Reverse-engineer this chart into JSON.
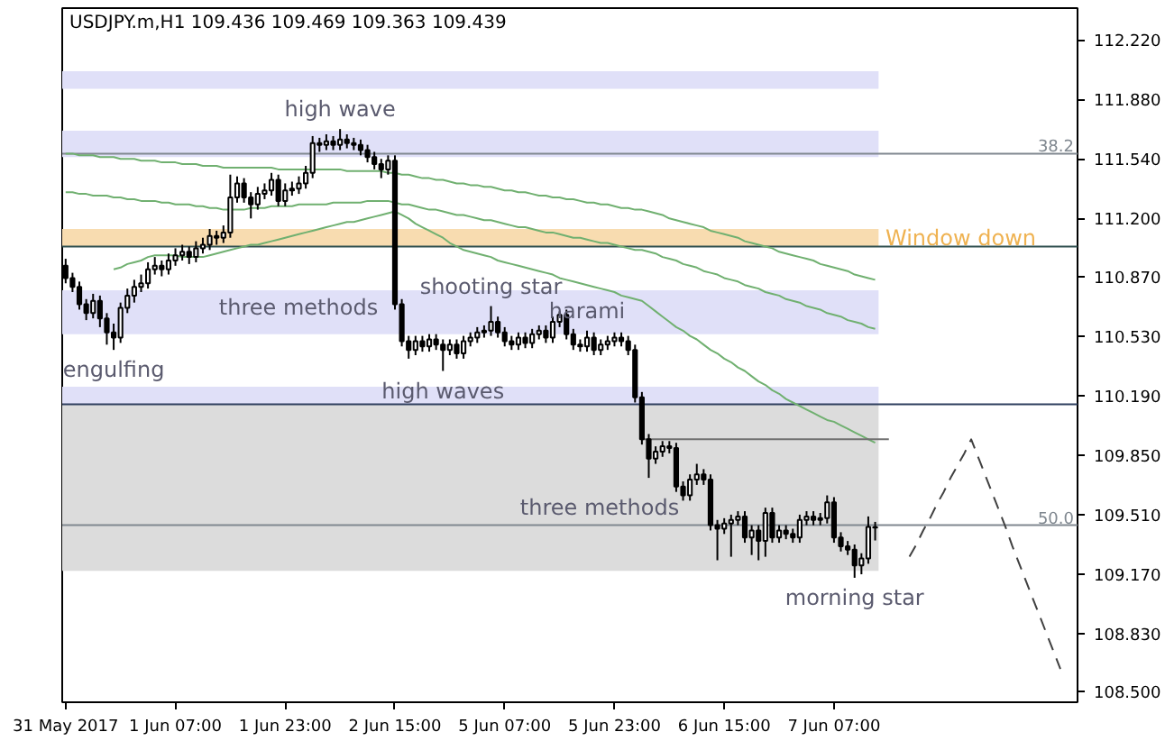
{
  "chart_data": {
    "type": "candlestick",
    "title": "USDJPY.m,H1  109.436 109.469 109.363 109.439",
    "categories": [
      "31 May 2017",
      null,
      null,
      null,
      null,
      null,
      null,
      null,
      null,
      null,
      null,
      null,
      null,
      null,
      null,
      null,
      "1 Jun 07:00",
      null,
      null,
      null,
      null,
      null,
      null,
      null,
      null,
      null,
      null,
      null,
      null,
      null,
      null,
      null,
      "1 Jun 23:00",
      null,
      null,
      null,
      null,
      null,
      null,
      null,
      null,
      null,
      null,
      null,
      null,
      null,
      null,
      null,
      "2 Jun 15:00",
      null,
      null,
      null,
      null,
      null,
      null,
      null,
      null,
      null,
      null,
      null,
      null,
      null,
      null,
      null,
      "5 Jun 07:00",
      null,
      null,
      null,
      null,
      null,
      null,
      null,
      null,
      null,
      null,
      null,
      null,
      null,
      null,
      null,
      "5 Jun 23:00",
      null,
      null,
      null,
      null,
      null,
      null,
      null,
      null,
      null,
      null,
      null,
      null,
      null,
      null,
      null,
      "6 Jun 15:00",
      null,
      null,
      null,
      null,
      null,
      null,
      null,
      null,
      null,
      null,
      null,
      null,
      null,
      null,
      null,
      "7 Jun 07:00",
      null,
      null,
      null,
      null,
      null,
      null,
      null,
      null,
      null,
      null,
      null,
      null,
      null,
      null,
      null,
      null,
      null,
      null,
      null,
      null,
      null,
      null,
      null,
      null,
      null,
      null,
      null,
      null,
      null,
      null,
      null,
      null,
      null,
      null,
      null
    ],
    "ohlc": [
      [
        110.93,
        110.97,
        110.83,
        110.86
      ],
      [
        110.86,
        110.89,
        110.78,
        110.81
      ],
      [
        110.81,
        110.84,
        110.68,
        110.71
      ],
      [
        110.71,
        110.74,
        110.62,
        110.66
      ],
      [
        110.66,
        110.77,
        110.63,
        110.73
      ],
      [
        110.73,
        110.76,
        110.58,
        110.63
      ],
      [
        110.63,
        110.66,
        110.48,
        110.55
      ],
      [
        110.55,
        110.6,
        110.45,
        110.52
      ],
      [
        110.52,
        110.72,
        110.49,
        110.69
      ],
      [
        110.69,
        110.8,
        110.66,
        110.76
      ],
      [
        110.76,
        110.85,
        110.72,
        110.81
      ],
      [
        110.81,
        110.88,
        110.78,
        110.83
      ],
      [
        110.83,
        110.95,
        110.8,
        110.91
      ],
      [
        110.91,
        110.98,
        110.88,
        110.93
      ],
      [
        110.93,
        110.96,
        110.87,
        110.91
      ],
      [
        110.91,
        111.0,
        110.88,
        110.96
      ],
      [
        110.96,
        111.03,
        110.93,
        110.99
      ],
      [
        110.99,
        111.05,
        110.96,
        111.01
      ],
      [
        111.01,
        111.04,
        110.94,
        110.98
      ],
      [
        110.98,
        111.07,
        110.95,
        111.03
      ],
      [
        111.03,
        111.09,
        111.0,
        111.05
      ],
      [
        111.05,
        111.14,
        111.02,
        111.1
      ],
      [
        111.1,
        111.13,
        111.05,
        111.09
      ],
      [
        111.09,
        111.16,
        111.06,
        111.12
      ],
      [
        111.12,
        111.45,
        111.09,
        111.32
      ],
      [
        111.32,
        111.44,
        111.29,
        111.4
      ],
      [
        111.4,
        111.43,
        111.29,
        111.32
      ],
      [
        111.32,
        111.35,
        111.2,
        111.28
      ],
      [
        111.28,
        111.38,
        111.25,
        111.34
      ],
      [
        111.34,
        111.4,
        111.31,
        111.36
      ],
      [
        111.36,
        111.46,
        111.33,
        111.42
      ],
      [
        111.42,
        111.45,
        111.27,
        111.3
      ],
      [
        111.3,
        111.4,
        111.27,
        111.36
      ],
      [
        111.36,
        111.41,
        111.33,
        111.37
      ],
      [
        111.37,
        111.44,
        111.34,
        111.4
      ],
      [
        111.4,
        111.5,
        111.37,
        111.46
      ],
      [
        111.46,
        111.67,
        111.43,
        111.63
      ],
      [
        111.63,
        111.66,
        111.58,
        111.62
      ],
      [
        111.62,
        111.68,
        111.59,
        111.64
      ],
      [
        111.64,
        111.67,
        111.59,
        111.62
      ],
      [
        111.62,
        111.71,
        111.59,
        111.65
      ],
      [
        111.65,
        111.68,
        111.6,
        111.63
      ],
      [
        111.63,
        111.66,
        111.59,
        111.62
      ],
      [
        111.62,
        111.65,
        111.56,
        111.59
      ],
      [
        111.59,
        111.62,
        111.52,
        111.55
      ],
      [
        111.55,
        111.58,
        111.48,
        111.51
      ],
      [
        111.51,
        111.54,
        111.43,
        111.48
      ],
      [
        111.48,
        111.56,
        111.45,
        111.53
      ],
      [
        111.53,
        111.56,
        110.68,
        110.71
      ],
      [
        110.71,
        110.74,
        110.47,
        110.5
      ],
      [
        110.5,
        110.53,
        110.4,
        110.45
      ],
      [
        110.45,
        110.53,
        110.42,
        110.5
      ],
      [
        110.5,
        110.53,
        110.44,
        110.47
      ],
      [
        110.47,
        110.54,
        110.44,
        110.51
      ],
      [
        110.51,
        110.54,
        110.45,
        110.48
      ],
      [
        110.48,
        110.51,
        110.33,
        110.45
      ],
      [
        110.45,
        110.51,
        110.42,
        110.48
      ],
      [
        110.48,
        110.51,
        110.4,
        110.43
      ],
      [
        110.43,
        110.53,
        110.4,
        110.5
      ],
      [
        110.5,
        110.55,
        110.47,
        110.52
      ],
      [
        110.52,
        110.58,
        110.49,
        110.55
      ],
      [
        110.55,
        110.59,
        110.52,
        110.56
      ],
      [
        110.56,
        110.7,
        110.53,
        110.61
      ],
      [
        110.61,
        110.64,
        110.52,
        110.55
      ],
      [
        110.55,
        110.58,
        110.47,
        110.5
      ],
      [
        110.5,
        110.53,
        110.45,
        110.48
      ],
      [
        110.48,
        110.55,
        110.45,
        110.52
      ],
      [
        110.52,
        110.55,
        110.46,
        110.49
      ],
      [
        110.49,
        110.57,
        110.46,
        110.54
      ],
      [
        110.54,
        110.59,
        110.51,
        110.56
      ],
      [
        110.56,
        110.59,
        110.49,
        110.52
      ],
      [
        110.52,
        110.64,
        110.49,
        110.61
      ],
      [
        110.61,
        110.67,
        110.58,
        110.65
      ],
      [
        110.65,
        110.68,
        110.51,
        110.54
      ],
      [
        110.54,
        110.57,
        110.45,
        110.48
      ],
      [
        110.48,
        110.51,
        110.44,
        110.47
      ],
      [
        110.47,
        110.56,
        110.44,
        110.52
      ],
      [
        110.52,
        110.55,
        110.42,
        110.45
      ],
      [
        110.45,
        110.51,
        110.42,
        110.48
      ],
      [
        110.48,
        110.53,
        110.45,
        110.5
      ],
      [
        110.5,
        110.55,
        110.47,
        110.52
      ],
      [
        110.52,
        110.55,
        110.47,
        110.5
      ],
      [
        110.5,
        110.53,
        110.42,
        110.45
      ],
      [
        110.45,
        110.48,
        110.15,
        110.18
      ],
      [
        110.18,
        110.21,
        109.91,
        109.94
      ],
      [
        109.94,
        109.97,
        109.72,
        109.83
      ],
      [
        109.83,
        109.9,
        109.8,
        109.87
      ],
      [
        109.87,
        109.93,
        109.84,
        109.9
      ],
      [
        109.9,
        109.93,
        109.86,
        109.89
      ],
      [
        109.89,
        109.92,
        109.64,
        109.67
      ],
      [
        109.67,
        109.7,
        109.59,
        109.62
      ],
      [
        109.62,
        109.74,
        109.59,
        109.71
      ],
      [
        109.71,
        109.8,
        109.68,
        109.74
      ],
      [
        109.74,
        109.77,
        109.68,
        109.71
      ],
      [
        109.71,
        109.74,
        109.42,
        109.45
      ],
      [
        109.45,
        109.48,
        109.25,
        109.43
      ],
      [
        109.43,
        109.49,
        109.4,
        109.46
      ],
      [
        109.46,
        109.51,
        109.27,
        109.48
      ],
      [
        109.48,
        109.53,
        109.45,
        109.5
      ],
      [
        109.5,
        109.53,
        109.35,
        109.38
      ],
      [
        109.38,
        109.45,
        109.28,
        109.42
      ],
      [
        109.42,
        109.45,
        109.25,
        109.36
      ],
      [
        109.36,
        109.55,
        109.27,
        109.52
      ],
      [
        109.52,
        109.55,
        109.35,
        109.38
      ],
      [
        109.38,
        109.45,
        109.35,
        109.42
      ],
      [
        109.42,
        109.45,
        109.37,
        109.4
      ],
      [
        109.4,
        109.43,
        109.35,
        109.38
      ],
      [
        109.38,
        109.51,
        109.35,
        109.48
      ],
      [
        109.48,
        109.53,
        109.45,
        109.5
      ],
      [
        109.5,
        109.53,
        109.45,
        109.48
      ],
      [
        109.48,
        109.52,
        109.45,
        109.49
      ],
      [
        109.49,
        109.62,
        109.46,
        109.58
      ],
      [
        109.58,
        109.61,
        109.35,
        109.38
      ],
      [
        109.38,
        109.41,
        109.3,
        109.33
      ],
      [
        109.33,
        109.36,
        109.28,
        109.31
      ],
      [
        109.31,
        109.34,
        109.15,
        109.22
      ],
      [
        109.22,
        109.29,
        109.17,
        109.26
      ],
      [
        109.26,
        109.5,
        109.23,
        109.44
      ],
      [
        109.436,
        109.469,
        109.363,
        109.439
      ],
      null,
      null,
      null,
      null,
      null,
      null,
      null,
      null,
      null,
      null,
      null,
      null,
      null,
      null,
      null,
      null,
      null,
      null,
      null,
      null,
      null,
      null,
      null,
      null,
      null,
      null,
      null,
      null,
      null
    ],
    "series": [
      {
        "type": "line",
        "color": "#70b070",
        "values": [
          111.57,
          111.57,
          111.56,
          111.56,
          111.56,
          111.55,
          111.55,
          111.55,
          111.54,
          111.54,
          111.54,
          111.53,
          111.53,
          111.53,
          111.52,
          111.52,
          111.52,
          111.51,
          111.51,
          111.51,
          111.5,
          111.5,
          111.5,
          111.49,
          111.49,
          111.49,
          111.49,
          111.49,
          111.49,
          111.49,
          111.49,
          111.48,
          111.48,
          111.48,
          111.48,
          111.48,
          111.48,
          111.48,
          111.48,
          111.48,
          111.48,
          111.47,
          111.47,
          111.47,
          111.47,
          111.47,
          111.47,
          111.46,
          111.46,
          111.45,
          111.45,
          111.44,
          111.43,
          111.43,
          111.42,
          111.42,
          111.41,
          111.4,
          111.4,
          111.39,
          111.39,
          111.38,
          111.38,
          111.37,
          111.36,
          111.36,
          111.35,
          111.35,
          111.34,
          111.33,
          111.33,
          111.32,
          111.32,
          111.31,
          111.31,
          111.3,
          111.29,
          111.29,
          111.28,
          111.28,
          111.27,
          111.26,
          111.26,
          111.25,
          111.25,
          111.24,
          111.23,
          111.22,
          111.2,
          111.19,
          111.18,
          111.17,
          111.16,
          111.15,
          111.13,
          111.12,
          111.11,
          111.1,
          111.09,
          111.07,
          111.06,
          111.05,
          111.04,
          111.03,
          111.01,
          111.0,
          110.99,
          110.98,
          110.97,
          110.96,
          110.94,
          110.93,
          110.92,
          110.91,
          110.9,
          110.88,
          110.87,
          110.86,
          110.85,
          null,
          null,
          null,
          null,
          null,
          null,
          null,
          null,
          null,
          null,
          null,
          null,
          null,
          null,
          null,
          null,
          null,
          null,
          null,
          null,
          null,
          null,
          null,
          null,
          null,
          null,
          null,
          null,
          null
        ]
      },
      {
        "type": "line",
        "color": "#70b070",
        "values": [
          111.35,
          111.35,
          111.34,
          111.34,
          111.33,
          111.33,
          111.33,
          111.32,
          111.32,
          111.31,
          111.31,
          111.3,
          111.3,
          111.3,
          111.29,
          111.29,
          111.28,
          111.28,
          111.28,
          111.27,
          111.27,
          111.26,
          111.26,
          111.25,
          111.25,
          111.25,
          111.25,
          111.26,
          111.26,
          111.26,
          111.27,
          111.27,
          111.27,
          111.27,
          111.28,
          111.28,
          111.28,
          111.28,
          111.28,
          111.29,
          111.29,
          111.29,
          111.29,
          111.29,
          111.3,
          111.3,
          111.3,
          111.3,
          111.29,
          111.28,
          111.28,
          111.27,
          111.26,
          111.25,
          111.25,
          111.24,
          111.23,
          111.22,
          111.22,
          111.21,
          111.2,
          111.19,
          111.19,
          111.18,
          111.17,
          111.16,
          111.15,
          111.15,
          111.14,
          111.13,
          111.12,
          111.12,
          111.11,
          111.1,
          111.09,
          111.09,
          111.08,
          111.07,
          111.06,
          111.06,
          111.05,
          111.04,
          111.03,
          111.02,
          111.02,
          111.01,
          111.0,
          110.98,
          110.97,
          110.96,
          110.94,
          110.93,
          110.92,
          110.9,
          110.89,
          110.88,
          110.86,
          110.85,
          110.84,
          110.82,
          110.81,
          110.8,
          110.78,
          110.77,
          110.76,
          110.74,
          110.73,
          110.72,
          110.7,
          110.69,
          110.68,
          110.66,
          110.65,
          110.64,
          110.62,
          110.61,
          110.6,
          110.58,
          110.57,
          null,
          null,
          null,
          null,
          null,
          null,
          null,
          null,
          null,
          null,
          null,
          null,
          null,
          null,
          null,
          null,
          null,
          null,
          null,
          null,
          null,
          null,
          null,
          null,
          null,
          null,
          null,
          null,
          null
        ]
      },
      {
        "type": "line",
        "color": "#70b070",
        "values": [
          null,
          null,
          null,
          null,
          null,
          null,
          null,
          110.91,
          110.92,
          110.94,
          110.95,
          110.96,
          110.98,
          110.99,
          110.99,
          110.99,
          110.99,
          110.98,
          110.98,
          110.98,
          110.98,
          110.99,
          111.0,
          111.01,
          111.02,
          111.03,
          111.04,
          111.05,
          111.05,
          111.06,
          111.07,
          111.08,
          111.09,
          111.1,
          111.11,
          111.12,
          111.13,
          111.14,
          111.15,
          111.16,
          111.17,
          111.18,
          111.18,
          111.19,
          111.2,
          111.21,
          111.22,
          111.23,
          111.24,
          111.22,
          111.2,
          111.17,
          111.15,
          111.13,
          111.11,
          111.09,
          111.06,
          111.04,
          111.02,
          111.01,
          111.0,
          110.99,
          110.98,
          110.96,
          110.95,
          110.94,
          110.93,
          110.92,
          110.91,
          110.9,
          110.89,
          110.88,
          110.86,
          110.85,
          110.84,
          110.83,
          110.82,
          110.81,
          110.8,
          110.79,
          110.78,
          110.76,
          110.75,
          110.74,
          110.73,
          110.7,
          110.67,
          110.64,
          110.61,
          110.58,
          110.56,
          110.53,
          110.51,
          110.48,
          110.45,
          110.43,
          110.4,
          110.38,
          110.35,
          110.33,
          110.3,
          110.27,
          110.25,
          110.22,
          110.2,
          110.17,
          110.15,
          110.13,
          110.11,
          110.09,
          110.07,
          110.05,
          110.04,
          110.02,
          110.0,
          109.98,
          109.96,
          109.94,
          109.92,
          null,
          null,
          null,
          null,
          null,
          null,
          null,
          null,
          null,
          null,
          null,
          null,
          null,
          null,
          null,
          null,
          null,
          null,
          null,
          null,
          null,
          null,
          null,
          null,
          null,
          null,
          null,
          null,
          null
        ]
      },
      {
        "type": "line",
        "color": "#707070",
        "values": [
          null,
          null,
          null,
          null,
          null,
          null,
          null,
          null,
          null,
          null,
          null,
          null,
          null,
          null,
          null,
          null,
          null,
          null,
          null,
          null,
          null,
          null,
          null,
          null,
          null,
          null,
          null,
          null,
          null,
          null,
          null,
          null,
          null,
          null,
          null,
          null,
          null,
          null,
          null,
          null,
          null,
          null,
          null,
          null,
          null,
          null,
          null,
          null,
          null,
          null,
          null,
          null,
          null,
          null,
          null,
          null,
          null,
          null,
          null,
          null,
          null,
          null,
          null,
          null,
          null,
          null,
          null,
          null,
          null,
          null,
          null,
          null,
          null,
          null,
          null,
          null,
          null,
          null,
          null,
          null,
          null,
          null,
          null,
          null,
          109.94,
          109.94,
          109.94,
          109.94,
          109.94,
          109.94,
          109.94,
          109.94,
          109.94,
          109.94,
          109.94,
          109.94,
          109.94,
          109.94,
          109.94,
          109.94,
          109.94,
          109.94,
          109.94,
          109.94,
          109.94,
          109.94,
          109.94,
          109.94,
          109.94,
          109.94,
          109.94,
          109.94,
          109.94,
          109.94,
          109.94,
          109.94,
          109.94,
          109.94,
          109.94,
          109.94,
          109.94,
          null,
          null,
          null,
          null,
          null,
          null,
          null,
          null,
          null,
          null,
          null,
          null,
          null,
          null,
          null,
          null,
          null,
          null,
          null,
          null,
          null,
          null,
          null,
          null,
          null,
          null,
          null
        ]
      },
      {
        "type": "line",
        "color": "#404040",
        "line_style": "dashed",
        "values": [
          null,
          null,
          null,
          null,
          null,
          null,
          null,
          null,
          null,
          null,
          null,
          null,
          null,
          null,
          null,
          null,
          null,
          null,
          null,
          null,
          null,
          null,
          null,
          null,
          null,
          null,
          null,
          null,
          null,
          null,
          null,
          null,
          null,
          null,
          null,
          null,
          null,
          null,
          null,
          null,
          null,
          null,
          null,
          null,
          null,
          null,
          null,
          null,
          null,
          null,
          null,
          null,
          null,
          null,
          null,
          null,
          null,
          null,
          null,
          null,
          null,
          null,
          null,
          null,
          null,
          null,
          null,
          null,
          null,
          null,
          null,
          null,
          null,
          null,
          null,
          null,
          null,
          null,
          null,
          null,
          null,
          null,
          null,
          null,
          null,
          null,
          null,
          null,
          null,
          null,
          null,
          null,
          null,
          null,
          null,
          null,
          null,
          null,
          null,
          null,
          null,
          null,
          null,
          null,
          null,
          null,
          null,
          null,
          null,
          null,
          null,
          null,
          null,
          null,
          null,
          null,
          null,
          null,
          null,
          null,
          null,
          null,
          null,
          109.27,
          109.34,
          109.42,
          109.49,
          109.57,
          109.64,
          109.72,
          109.79,
          109.86,
          109.94,
          109.84,
          109.74,
          109.64,
          109.54,
          109.44,
          109.33,
          109.23,
          109.13,
          109.03,
          108.93,
          108.83,
          108.73,
          108.63,
          null,
          null
        ]
      }
    ],
    "bands": [
      {
        "axis": "y",
        "from": 111.94,
        "to": 112.04,
        "color": "#e0e0f8"
      },
      {
        "axis": "y",
        "from": 111.55,
        "to": 111.7,
        "color": "#e0e0f8"
      },
      {
        "axis": "y",
        "from": 111.04,
        "to": 111.14,
        "color": "#f8dcb0",
        "label": "Window down"
      },
      {
        "axis": "y",
        "from": 110.54,
        "to": 110.79,
        "color": "#e0e0f8"
      },
      {
        "axis": "y",
        "from": 110.14,
        "to": 110.24,
        "color": "#e0e0f8"
      },
      {
        "axis": "y",
        "from": 109.19,
        "to": 110.14,
        "color": "#dcdcdc"
      }
    ],
    "ref_lines": [
      {
        "axis": "y",
        "value": 111.57,
        "color": "#808890"
      },
      {
        "axis": "y",
        "value": 109.45,
        "color": "#808890"
      },
      {
        "axis": "y",
        "value": 111.04,
        "color": "#2f4f4f"
      },
      {
        "axis": "y",
        "value": 110.14,
        "color": "#2f3f5f"
      }
    ],
    "annotations": [
      {
        "text": "38.2",
        "y": 111.57
      },
      {
        "text": "50.0",
        "y": 109.45
      },
      {
        "text": "high wave",
        "y": 111.71
      },
      "three methods",
      {
        "text": "engulfing",
        "y": 110.45
      },
      {
        "text": "shooting star",
        "y": 110.7
      },
      {
        "text": "harami",
        "y": 110.56
      },
      {
        "text": "high waves",
        "y": 110.33
      },
      "three methods",
      {
        "text": "morning star",
        "y": 109.15
      }
    ],
    "ylim": [
      108.44,
      112.4
    ],
    "yticks": [
      {
        "value": 112.22,
        "label": "112.220"
      },
      {
        "value": 111.88,
        "label": "111.880"
      },
      {
        "value": 111.54,
        "label": "111.540"
      },
      {
        "value": 111.2,
        "label": "111.200"
      },
      {
        "value": 110.87,
        "label": "110.870"
      },
      {
        "value": 110.53,
        "label": "110.530"
      },
      {
        "value": 110.19,
        "label": "110.190"
      },
      {
        "value": 109.85,
        "label": "109.850"
      },
      {
        "value": 109.51,
        "label": "109.510"
      },
      {
        "value": 109.17,
        "label": "109.170"
      },
      {
        "value": 108.83,
        "label": "108.830"
      },
      {
        "value": 108.5,
        "label": "108.500"
      }
    ],
    "grid": false
  }
}
